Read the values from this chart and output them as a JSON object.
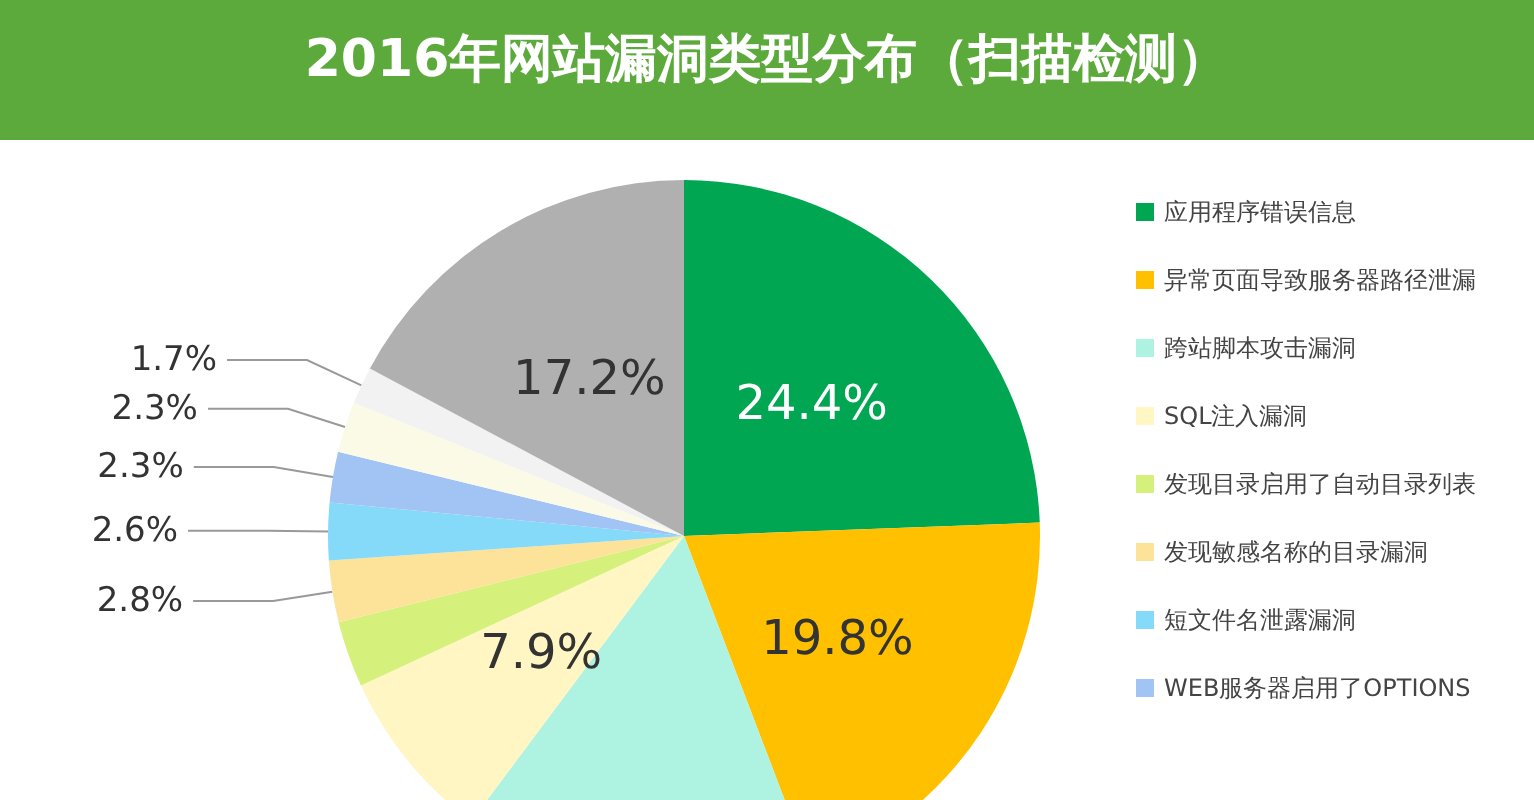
{
  "chart_data": {
    "type": "pie",
    "title": "2016年网站漏洞类型分布（扫描检测）",
    "categories": [
      "应用程序错误信息",
      "异常页面导致服务器路径泄漏",
      "跨站脚本攻击漏洞",
      "SQL注入漏洞",
      "发现目录启用了自动目录列表",
      "发现敏感名称的目录漏洞",
      "短文件名泄露漏洞",
      "WEB服务器启用了OPTIONS",
      null,
      null,
      null
    ],
    "values": [
      24.4,
      19.8,
      16.0,
      7.9,
      3.0,
      2.8,
      2.6,
      2.3,
      2.3,
      1.7,
      17.2
    ],
    "value_labels": [
      "24.4%",
      "19.8%",
      null,
      "7.9%",
      null,
      "2.8%",
      "2.6%",
      "2.3%",
      "2.3%",
      "1.7%",
      "17.2%"
    ],
    "colors": [
      "#00a651",
      "#ffc000",
      "#aef2e2",
      "#fff6c4",
      "#d6f07c",
      "#fde39a",
      "#84daf8",
      "#a2c4f4",
      "#fafae6",
      "#f2f2f2",
      "#b0b0b0"
    ],
    "legend": "right"
  }
}
